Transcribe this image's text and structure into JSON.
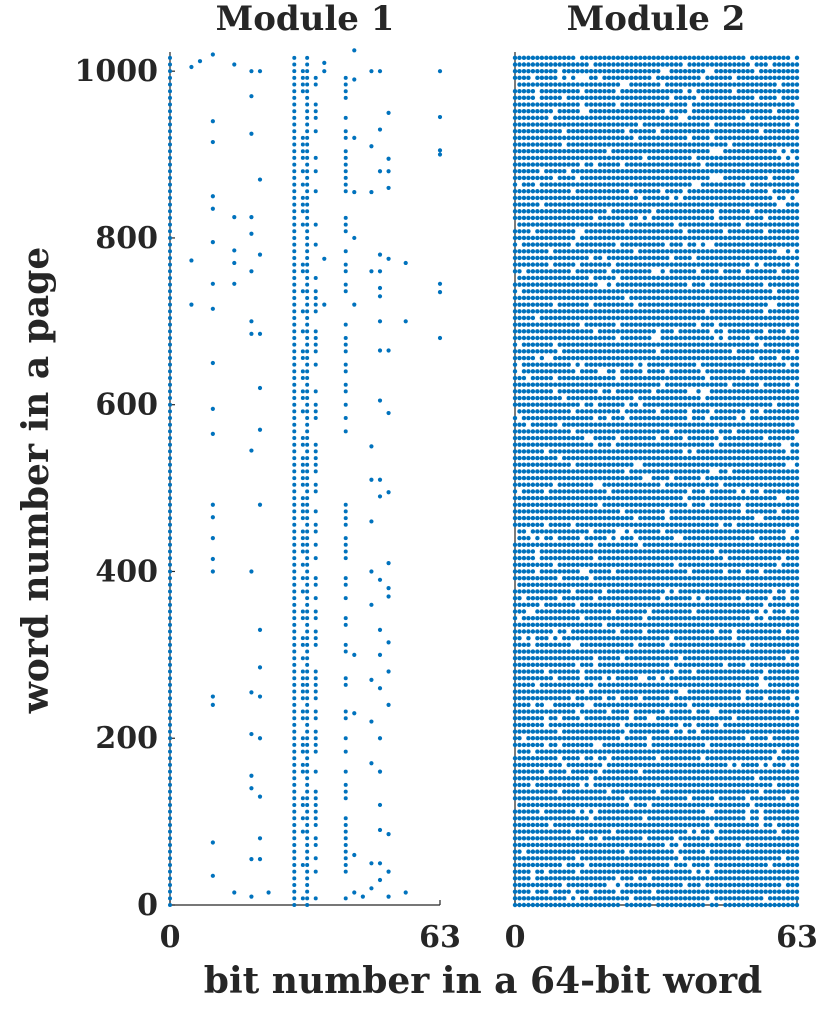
{
  "chart_data": {
    "type": "scatter",
    "xlabel": "bit number in a 64-bit word",
    "ylabel": "word number in a page",
    "color": "#0072bd",
    "y_ticks": [
      "0",
      "200",
      "400",
      "600",
      "800",
      "1000"
    ],
    "y_tick_values": [
      0,
      200,
      400,
      600,
      800,
      1000
    ],
    "ylim": [
      0,
      1023
    ],
    "xlim": [
      0,
      63
    ],
    "panels": [
      {
        "title": "Module 1",
        "x_ticks": [
          "0",
          "63"
        ],
        "x_tick_values": [
          0,
          63
        ],
        "dense_columns": [
          0,
          29,
          32
        ],
        "moderate_columns": [
          31,
          34,
          41
        ],
        "sparse_points": [
          [
            5,
            1005
          ],
          [
            5,
            773
          ],
          [
            5,
            720
          ],
          [
            7,
            1012
          ],
          [
            10,
            1020
          ],
          [
            10,
            940
          ],
          [
            10,
            915
          ],
          [
            10,
            850
          ],
          [
            10,
            835
          ],
          [
            10,
            795
          ],
          [
            10,
            745
          ],
          [
            10,
            715
          ],
          [
            10,
            650
          ],
          [
            10,
            595
          ],
          [
            10,
            565
          ],
          [
            10,
            480
          ],
          [
            10,
            465
          ],
          [
            10,
            440
          ],
          [
            10,
            415
          ],
          [
            10,
            400
          ],
          [
            10,
            250
          ],
          [
            10,
            240
          ],
          [
            10,
            75
          ],
          [
            10,
            35
          ],
          [
            15,
            1008
          ],
          [
            15,
            825
          ],
          [
            15,
            785
          ],
          [
            15,
            770
          ],
          [
            15,
            745
          ],
          [
            15,
            15
          ],
          [
            19,
            1000
          ],
          [
            19,
            970
          ],
          [
            19,
            925
          ],
          [
            19,
            825
          ],
          [
            19,
            805
          ],
          [
            19,
            760
          ],
          [
            19,
            700
          ],
          [
            19,
            685
          ],
          [
            19,
            545
          ],
          [
            19,
            400
          ],
          [
            19,
            255
          ],
          [
            19,
            205
          ],
          [
            19,
            155
          ],
          [
            19,
            140
          ],
          [
            19,
            55
          ],
          [
            19,
            10
          ],
          [
            21,
            1000
          ],
          [
            21,
            870
          ],
          [
            21,
            780
          ],
          [
            21,
            685
          ],
          [
            21,
            620
          ],
          [
            21,
            570
          ],
          [
            21,
            480
          ],
          [
            21,
            330
          ],
          [
            21,
            285
          ],
          [
            21,
            250
          ],
          [
            21,
            200
          ],
          [
            21,
            130
          ],
          [
            21,
            80
          ],
          [
            21,
            55
          ],
          [
            23,
            15
          ],
          [
            36,
            1010
          ],
          [
            36,
            1000
          ],
          [
            36,
            775
          ],
          [
            36,
            720
          ],
          [
            43,
            1025
          ],
          [
            43,
            990
          ],
          [
            43,
            920
          ],
          [
            43,
            855
          ],
          [
            43,
            800
          ],
          [
            43,
            720
          ],
          [
            43,
            300
          ],
          [
            43,
            230
          ],
          [
            43,
            60
          ],
          [
            43,
            15
          ],
          [
            45,
            10
          ],
          [
            47,
            1000
          ],
          [
            47,
            910
          ],
          [
            47,
            855
          ],
          [
            47,
            760
          ],
          [
            47,
            550
          ],
          [
            47,
            510
          ],
          [
            47,
            460
          ],
          [
            47,
            400
          ],
          [
            47,
            360
          ],
          [
            47,
            270
          ],
          [
            47,
            220
          ],
          [
            47,
            170
          ],
          [
            47,
            50
          ],
          [
            47,
            20
          ],
          [
            49,
            1000
          ],
          [
            49,
            930
          ],
          [
            49,
            880
          ],
          [
            49,
            780
          ],
          [
            49,
            760
          ],
          [
            49,
            740
          ],
          [
            49,
            730
          ],
          [
            49,
            700
          ],
          [
            49,
            665
          ],
          [
            49,
            605
          ],
          [
            49,
            510
          ],
          [
            49,
            490
          ],
          [
            49,
            390
          ],
          [
            49,
            330
          ],
          [
            49,
            300
          ],
          [
            49,
            260
          ],
          [
            49,
            200
          ],
          [
            49,
            160
          ],
          [
            49,
            120
          ],
          [
            49,
            90
          ],
          [
            49,
            50
          ],
          [
            49,
            30
          ],
          [
            51,
            950
          ],
          [
            51,
            895
          ],
          [
            51,
            880
          ],
          [
            51,
            860
          ],
          [
            51,
            775
          ],
          [
            51,
            665
          ],
          [
            51,
            590
          ],
          [
            51,
            495
          ],
          [
            51,
            410
          ],
          [
            51,
            380
          ],
          [
            51,
            370
          ],
          [
            51,
            315
          ],
          [
            51,
            280
          ],
          [
            51,
            240
          ],
          [
            51,
            85
          ],
          [
            51,
            40
          ],
          [
            51,
            10
          ],
          [
            55,
            770
          ],
          [
            55,
            700
          ],
          [
            55,
            15
          ],
          [
            63,
            1000
          ],
          [
            63,
            945
          ],
          [
            63,
            905
          ],
          [
            63,
            900
          ],
          [
            63,
            745
          ],
          [
            63,
            735
          ],
          [
            63,
            680
          ]
        ]
      },
      {
        "title": "Module 2",
        "x_ticks": [
          "0",
          "63"
        ],
        "x_tick_values": [
          0,
          63
        ],
        "fill": "dense"
      }
    ]
  }
}
